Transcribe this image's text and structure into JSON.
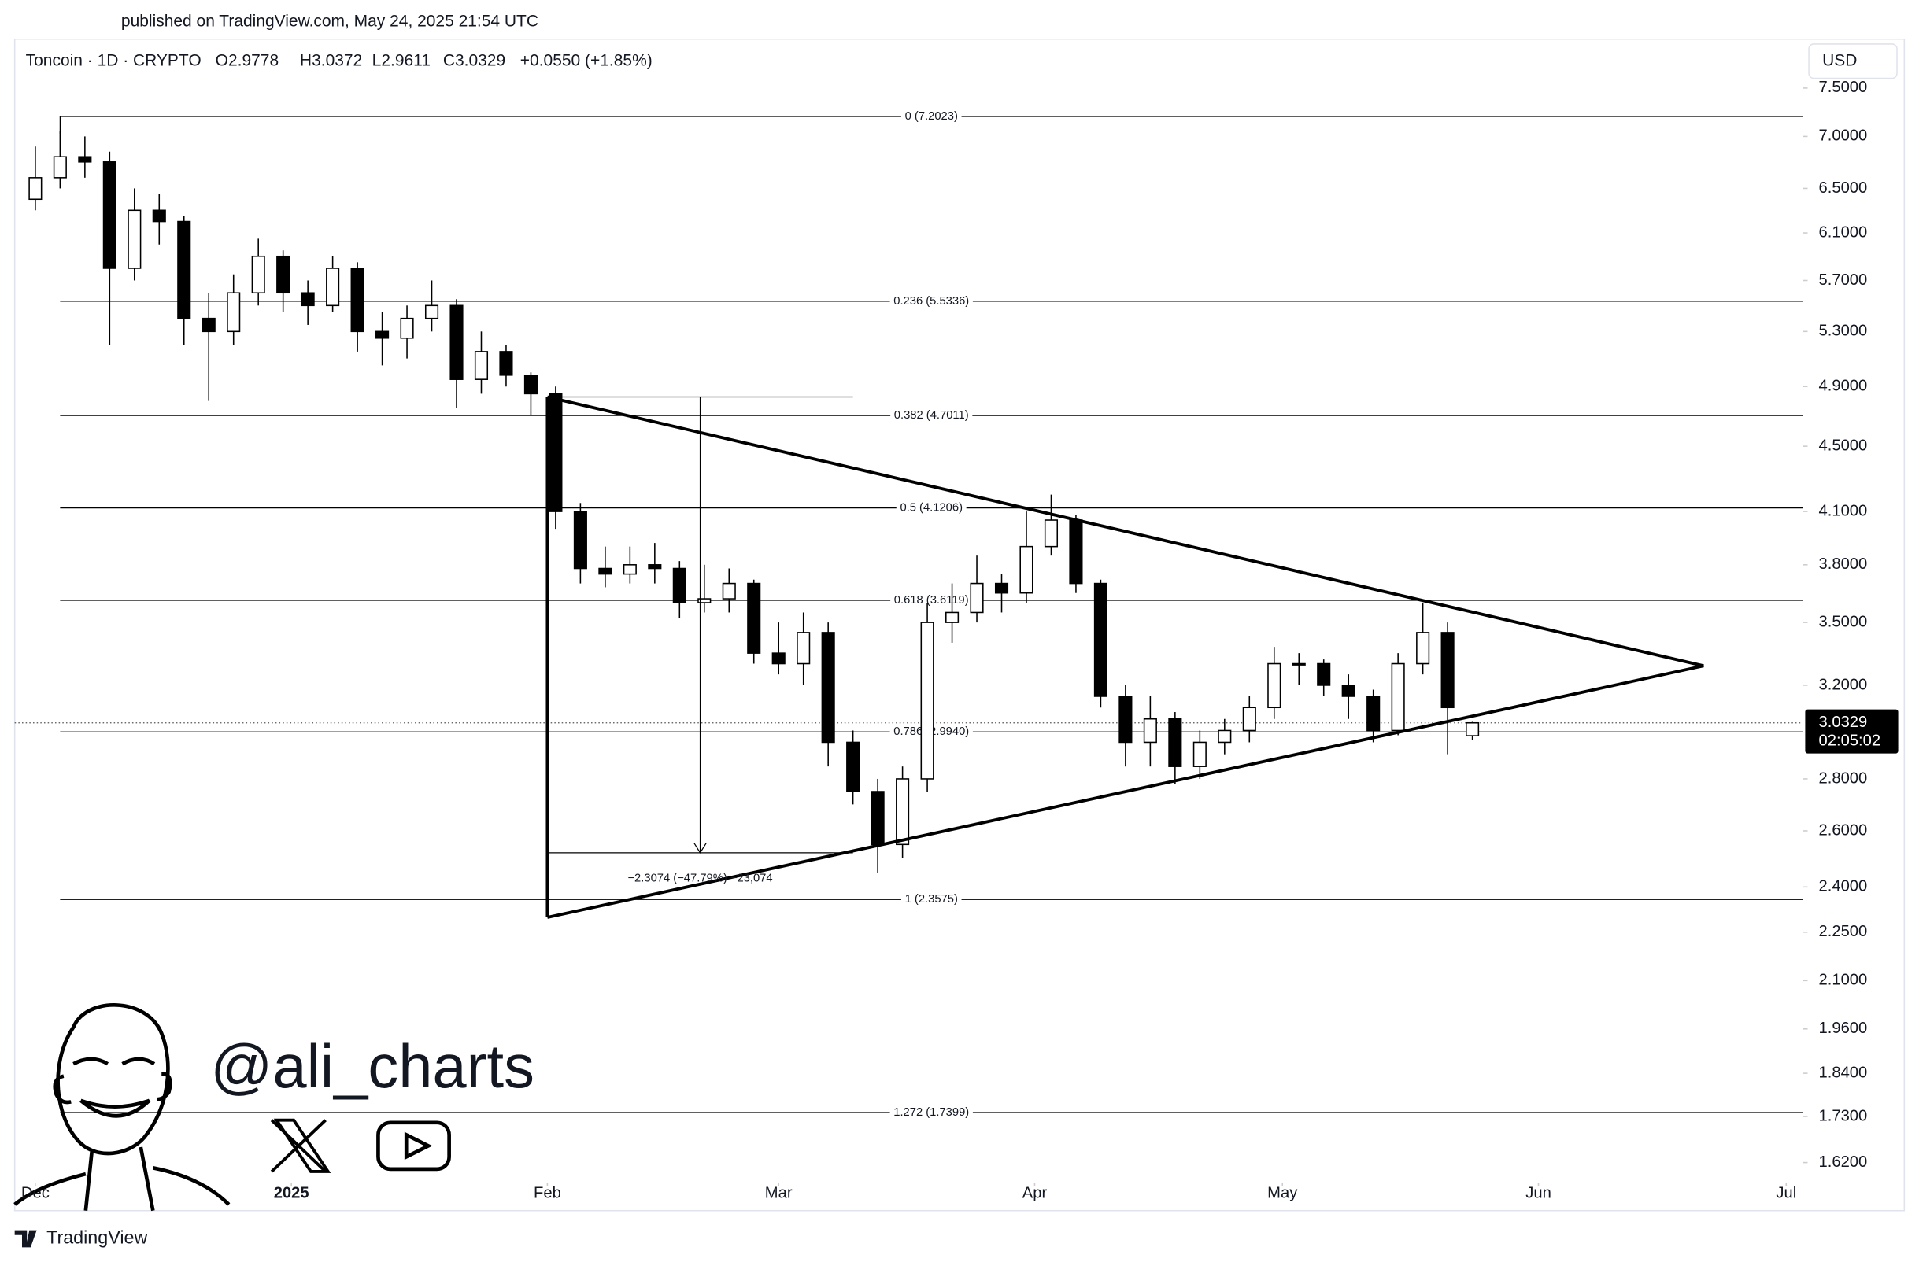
{
  "published": "published on TradingView.com, May 24, 2025 21:54 UTC",
  "chart_data": {
    "type": "candlestick",
    "legend": {
      "symbol": "Toncoin · 1D · CRYPTO",
      "open": "O2.9778",
      "high": "H3.0372",
      "low": "L2.9611",
      "close": "C3.0329",
      "change": "+0.0550 (+1.85%)"
    },
    "currency": "USD",
    "x": [
      0,
      3,
      6,
      9,
      12,
      15,
      18,
      21,
      24,
      27,
      30,
      33,
      36,
      39,
      42,
      45,
      48,
      51,
      54,
      57,
      60,
      63,
      66,
      69,
      72,
      75,
      78,
      81,
      84,
      87,
      90,
      93,
      96,
      99,
      102,
      105,
      108,
      111,
      114,
      117,
      120,
      123,
      126,
      129,
      132,
      135,
      138,
      141,
      144,
      147,
      150,
      153,
      156,
      159,
      162,
      165,
      168,
      171,
      174
    ],
    "open": [
      6.4,
      6.6,
      6.8,
      6.75,
      5.8,
      6.3,
      6.2,
      5.4,
      5.3,
      5.6,
      5.9,
      5.6,
      5.5,
      5.8,
      5.3,
      5.25,
      5.4,
      5.5,
      4.95,
      5.15,
      4.98,
      4.85,
      4.1,
      3.78,
      3.75,
      3.8,
      3.78,
      3.6,
      3.62,
      3.7,
      3.35,
      3.3,
      3.45,
      2.95,
      2.75,
      2.55,
      2.8,
      3.5,
      3.55,
      3.7,
      3.65,
      3.9,
      4.05,
      3.7,
      3.15,
      2.95,
      3.05,
      2.85,
      2.95,
      3.0,
      3.1,
      3.3,
      3.3,
      3.2,
      3.15,
      3.0,
      3.3,
      3.45,
      2.9778
    ],
    "high": [
      6.9,
      7.05,
      7.0,
      6.85,
      6.5,
      6.45,
      6.25,
      5.6,
      5.75,
      6.05,
      5.95,
      5.7,
      5.9,
      5.85,
      5.45,
      5.5,
      5.7,
      5.55,
      5.3,
      5.2,
      5.0,
      4.9,
      4.15,
      3.9,
      3.9,
      3.92,
      3.82,
      3.8,
      3.78,
      3.72,
      3.5,
      3.55,
      3.5,
      3.0,
      2.8,
      2.85,
      3.6,
      3.7,
      3.85,
      3.75,
      4.1,
      4.2,
      4.08,
      3.72,
      3.2,
      3.15,
      3.08,
      3.0,
      3.05,
      3.15,
      3.38,
      3.35,
      3.32,
      3.25,
      3.18,
      3.35,
      3.6,
      3.5,
      3.0372
    ],
    "low": [
      6.3,
      6.5,
      6.6,
      5.2,
      5.7,
      6.0,
      5.2,
      4.8,
      5.2,
      5.5,
      5.45,
      5.35,
      5.45,
      5.15,
      5.05,
      5.1,
      5.3,
      4.75,
      4.85,
      4.9,
      4.7,
      4.0,
      3.7,
      3.68,
      3.7,
      3.7,
      3.52,
      3.55,
      3.55,
      3.3,
      3.25,
      3.2,
      2.85,
      2.7,
      2.45,
      2.5,
      2.75,
      3.4,
      3.5,
      3.55,
      3.6,
      3.85,
      3.65,
      3.1,
      2.85,
      2.85,
      2.78,
      2.8,
      2.9,
      2.95,
      3.05,
      3.2,
      3.15,
      3.05,
      2.95,
      2.98,
      3.25,
      2.9,
      2.9611
    ],
    "close": [
      6.6,
      6.8,
      6.75,
      5.8,
      6.3,
      6.2,
      5.4,
      5.3,
      5.6,
      5.9,
      5.6,
      5.5,
      5.8,
      5.3,
      5.25,
      5.4,
      5.5,
      4.95,
      5.15,
      4.98,
      4.85,
      4.1,
      3.78,
      3.75,
      3.8,
      3.78,
      3.6,
      3.62,
      3.7,
      3.35,
      3.3,
      3.45,
      2.95,
      2.75,
      2.55,
      2.8,
      3.5,
      3.55,
      3.7,
      3.65,
      3.9,
      4.05,
      3.7,
      3.15,
      2.95,
      3.05,
      2.85,
      2.95,
      3.0,
      3.1,
      3.3,
      3.3,
      3.2,
      3.15,
      3.0,
      3.3,
      3.45,
      3.1,
      3.0329
    ],
    "candle_colors": {
      "up": "#ffffff",
      "down": "#000000",
      "border": "#000000"
    },
    "log_y": true,
    "xlim": [
      -2.5,
      214
    ],
    "ylim": [
      1.58,
      8.0
    ],
    "xticks": [
      {
        "value": 0,
        "label": "Dec"
      },
      {
        "value": 31,
        "label": "2025"
      },
      {
        "value": 62,
        "label": "Feb"
      },
      {
        "value": 90,
        "label": "Mar"
      },
      {
        "value": 121,
        "label": "Apr"
      },
      {
        "value": 151,
        "label": "May"
      },
      {
        "value": 182,
        "label": "Jun"
      },
      {
        "value": 212,
        "label": "Jul"
      }
    ],
    "yticks": [
      {
        "value": 7.5,
        "label": "7.5000"
      },
      {
        "value": 7.0,
        "label": "7.0000"
      },
      {
        "value": 6.5,
        "label": "6.5000"
      },
      {
        "value": 6.1,
        "label": "6.1000"
      },
      {
        "value": 5.7,
        "label": "5.7000"
      },
      {
        "value": 5.3,
        "label": "5.3000"
      },
      {
        "value": 4.9,
        "label": "4.9000"
      },
      {
        "value": 4.5,
        "label": "4.5000"
      },
      {
        "value": 4.1,
        "label": "4.1000"
      },
      {
        "value": 3.8,
        "label": "3.8000"
      },
      {
        "value": 3.5,
        "label": "3.5000"
      },
      {
        "value": 3.2,
        "label": "3.2000"
      },
      {
        "value": 2.8,
        "label": "2.8000"
      },
      {
        "value": 2.6,
        "label": "2.6000"
      },
      {
        "value": 2.4,
        "label": "2.4000"
      },
      {
        "value": 2.25,
        "label": "2.2500"
      },
      {
        "value": 2.1,
        "label": "2.1000"
      },
      {
        "value": 1.96,
        "label": "1.9600"
      },
      {
        "value": 1.84,
        "label": "1.8400"
      },
      {
        "value": 1.73,
        "label": "1.7300"
      },
      {
        "value": 1.62,
        "label": "1.6200"
      }
    ],
    "last_price": 3.0329,
    "countdown": "02:05:02",
    "fib": {
      "start_x": 3,
      "levels": [
        {
          "value": 7.2023,
          "label": "0 (7.2023)"
        },
        {
          "value": 5.5336,
          "label": "0.236 (5.5336)"
        },
        {
          "value": 4.7011,
          "label": "0.382 (4.7011)"
        },
        {
          "value": 4.1206,
          "label": "0.5 (4.1206)"
        },
        {
          "value": 3.6119,
          "label": "0.618 (3.6119)"
        },
        {
          "value": 2.994,
          "label": "0.786 (2.9940)"
        },
        {
          "value": 2.3575,
          "label": "1 (2.3575)"
        },
        {
          "value": 1.7399,
          "label": "1.272 (1.7399)"
        }
      ]
    },
    "trendlines": [
      {
        "x": [
          62,
          202
        ],
        "y": [
          4.8274,
          3.29
        ]
      },
      {
        "x": [
          62,
          202
        ],
        "y": [
          2.298,
          3.29
        ]
      },
      {
        "x": [
          62,
          62
        ],
        "y": [
          4.8274,
          2.298
        ]
      }
    ],
    "measure": {
      "x": [
        62,
        99
      ],
      "y": [
        4.8274,
        2.52
      ],
      "label": "−2.3074 (−47.79%) −23,074"
    }
  },
  "watermark": {
    "handle": "@ali_charts"
  },
  "footer": "TradingView"
}
